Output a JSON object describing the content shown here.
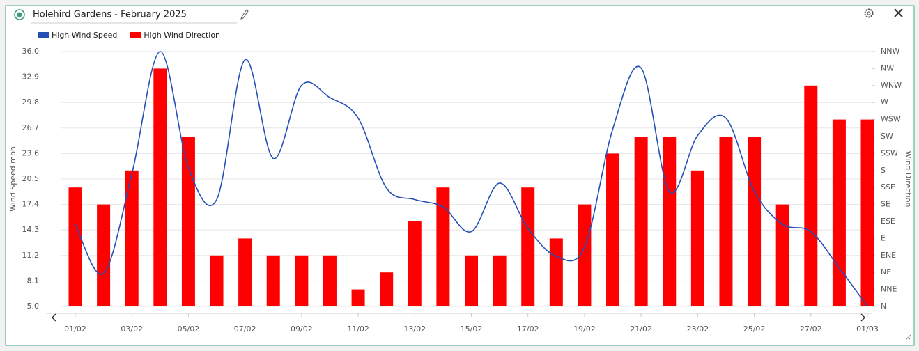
{
  "header": {
    "title": "Holehird Gardens - February 2025"
  },
  "chart_data": {
    "type": "bar-line",
    "categories": [
      "01/02",
      null,
      "03/02",
      null,
      "05/02",
      null,
      "07/02",
      null,
      "09/02",
      null,
      "11/02",
      null,
      "13/02",
      null,
      "15/02",
      null,
      "17/02",
      null,
      "19/02",
      null,
      "21/02",
      null,
      "23/02",
      null,
      "25/02",
      null,
      "27/02",
      null,
      "01/03"
    ],
    "series": [
      {
        "name": "High Wind Speed",
        "type": "line",
        "color": "#2450b8",
        "axis": "y",
        "values": [
          15.0,
          9.0,
          21.1,
          36.0,
          21.9,
          18.0,
          35.0,
          23.0,
          31.9,
          30.4,
          27.9,
          19.4,
          18.0,
          17.1,
          14.1,
          20.0,
          14.5,
          11.1,
          12.2,
          26.6,
          34.0,
          19.0,
          25.8,
          27.9,
          19.0,
          15.0,
          14.1,
          9.7,
          5.0
        ]
      },
      {
        "name": "High Wind Direction",
        "type": "bar",
        "color": "#ff0000",
        "axis": "y2",
        "values": [
          7,
          6,
          8,
          14,
          10,
          3,
          4,
          3,
          3,
          3,
          1,
          2,
          5,
          7,
          3,
          3,
          7,
          4,
          6,
          9,
          10,
          10,
          8,
          10,
          10,
          6,
          13,
          11,
          11
        ]
      }
    ],
    "ylabel": "Wind Speed mph",
    "y2label": "Wind Direction",
    "ylim": [
      5,
      36
    ],
    "yticks": [
      {
        "value": 5,
        "label": "5.0"
      },
      8.1,
      11.2,
      14.3,
      17.4,
      20.5,
      23.6,
      26.7,
      29.8,
      32.9,
      {
        "value": 36,
        "label": "36.0"
      }
    ],
    "y2lim": [
      0,
      15
    ],
    "y2ticks": [
      {
        "value": 0,
        "label": "N"
      },
      {
        "value": 1,
        "label": "NNE"
      },
      {
        "value": 2,
        "label": "NE"
      },
      {
        "value": 3,
        "label": "ENE"
      },
      {
        "value": 4,
        "label": "E"
      },
      {
        "value": 5,
        "label": "ESE"
      },
      {
        "value": 6,
        "label": "SE"
      },
      {
        "value": 7,
        "label": "SSE"
      },
      {
        "value": 8,
        "label": "S"
      },
      {
        "value": 9,
        "label": "SSW"
      },
      {
        "value": 10,
        "label": "SW"
      },
      {
        "value": 11,
        "label": "WSW"
      },
      {
        "value": 12,
        "label": "W"
      },
      {
        "value": 13,
        "label": "WNW"
      },
      {
        "value": 14,
        "label": "NW"
      },
      {
        "value": 15,
        "label": "NNW"
      }
    ],
    "grid": true,
    "legend": "top-left"
  }
}
